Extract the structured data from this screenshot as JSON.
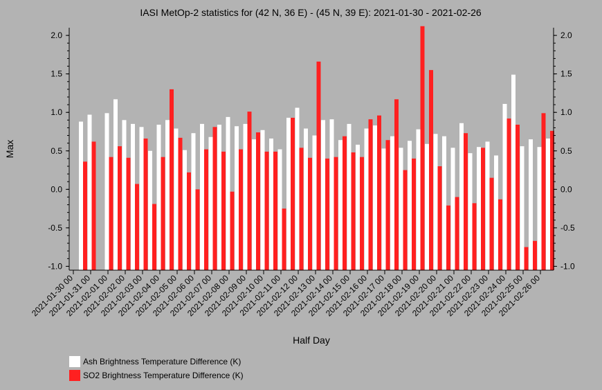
{
  "chart_data": {
    "type": "bar",
    "title": "IASI MetOp-2 statistics for (42 N, 36 E) - (45 N, 39 E): 2021-01-30 - 2021-02-26",
    "xlabel": "Half Day",
    "ylabel": "Max",
    "ylim": [
      -1.05,
      2.1
    ],
    "yticks": [
      "2.0",
      "1.5",
      "1.0",
      "0.5",
      "0.0",
      "-0.5",
      "-1.0"
    ],
    "x_tick_labels": [
      "2021-01-30 00",
      "2021-01-31 00",
      "2021-02-01 00",
      "2021-02-02 00",
      "2021-02-03 00",
      "2021-02-04 00",
      "2021-02-05 00",
      "2021-02-06 00",
      "2021-02-07 00",
      "2021-02-08 00",
      "2021-02-09 00",
      "2021-02-10 00",
      "2021-02-11 00",
      "2021-02-12 00",
      "2021-02-13 00",
      "2021-02-14 00",
      "2021-02-15 00",
      "2021-02-16 00",
      "2021-02-17 00",
      "2021-02-18 00",
      "2021-02-19 00",
      "2021-02-20 00",
      "2021-02-21 00",
      "2021-02-22 00",
      "2021-02-23 00",
      "2021-02-24 00",
      "2021-02-25 00",
      "2021-02-26 00"
    ],
    "series": [
      {
        "name": "Ash Brightness Temperature Difference (K)",
        "color": "#ffffff",
        "values": [
          0.88,
          0.97,
          null,
          0.99,
          1.17,
          0.9,
          0.85,
          0.81,
          0.5,
          0.84,
          0.9,
          0.79,
          0.51,
          0.73,
          0.85,
          0.68,
          0.84,
          0.94,
          0.82,
          0.85,
          0.65,
          0.77,
          0.66,
          0.52,
          0.93,
          1.06,
          0.79,
          0.7,
          0.9,
          0.91,
          0.64,
          0.85,
          0.58,
          0.79,
          0.83,
          0.53,
          0.69,
          0.54,
          0.63,
          0.78,
          0.59,
          0.72,
          0.69,
          0.54,
          0.86,
          0.47,
          0.55,
          0.62,
          0.44,
          1.11,
          1.49,
          0.56,
          0.65,
          0.55,
          0.66
        ]
      },
      {
        "name": "SO2 Brightness Temperature Difference (K)",
        "color": "#ff2020",
        "values": [
          0.36,
          0.62,
          null,
          0.42,
          0.56,
          0.41,
          0.07,
          0.66,
          -0.19,
          0.42,
          1.3,
          0.67,
          0.22,
          0.0,
          0.52,
          0.81,
          0.49,
          -0.03,
          0.52,
          1.01,
          0.74,
          0.49,
          0.49,
          -0.25,
          0.93,
          0.54,
          0.41,
          1.66,
          0.4,
          0.42,
          0.69,
          0.48,
          0.42,
          0.91,
          0.96,
          0.64,
          1.17,
          0.25,
          0.4,
          2.12,
          1.55,
          0.3,
          -0.21,
          -0.1,
          0.73,
          -0.18,
          0.54,
          0.15,
          -0.13,
          0.92,
          0.84,
          -0.75,
          -0.67,
          0.99,
          0.76
        ]
      }
    ],
    "legend_position": "bottom-left",
    "grid": false
  }
}
